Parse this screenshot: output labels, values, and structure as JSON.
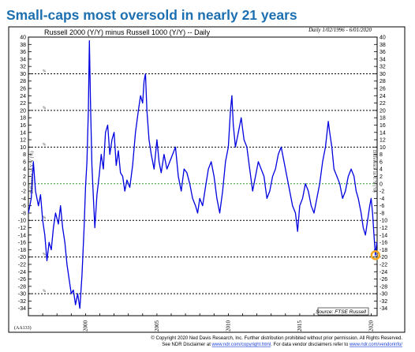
{
  "headline": "Small-caps most oversold in nearly 21 years",
  "chart_data": {
    "type": "line",
    "title": "Russell 2000 (Y/Y) minus Russell 1000 (Y/Y) -- Daily",
    "date_range": "Daily 1/02/1996 - 6/01/2020",
    "chart_code": "(AA133)",
    "source": "Source: FTSE Russell",
    "y_axis_label": "Difference in Y/Y (%)",
    "xlabel": "",
    "ylim": [
      -36,
      40
    ],
    "y_ticks": [
      40,
      38,
      36,
      34,
      32,
      30,
      28,
      26,
      24,
      22,
      20,
      18,
      16,
      14,
      12,
      10,
      8,
      6,
      4,
      2,
      0,
      -2,
      -4,
      -6,
      -8,
      -10,
      -12,
      -14,
      -16,
      -18,
      -20,
      -22,
      -24,
      -26,
      -28,
      -30,
      -32,
      -34
    ],
    "xlim": [
      1996.0,
      2020.42
    ],
    "x_tick_labels": [
      "2000",
      "2005",
      "2010",
      "2015",
      "2020"
    ],
    "x_ticks": [
      2000,
      2005,
      2010,
      2015,
      2020
    ],
    "reference_lines": [
      {
        "y": 30,
        "style": "dashed",
        "color": "#000000",
        "label": "%"
      },
      {
        "y": 20,
        "style": "dashed",
        "color": "#000000",
        "label": "%"
      },
      {
        "y": 10,
        "style": "dashed",
        "color": "#000000",
        "label": "%"
      },
      {
        "y": 0,
        "style": "dashed",
        "color": "#2e9b2e",
        "label": ""
      },
      {
        "y": -10,
        "style": "dashed",
        "color": "#000000",
        "label": "%"
      },
      {
        "y": -20,
        "style": "dashed",
        "color": "#000000",
        "label": "%"
      },
      {
        "y": -30,
        "style": "dashed",
        "color": "#000000",
        "label": "%"
      }
    ],
    "highlight": {
      "x": 2020.3,
      "y": -19.5,
      "color": "#f5a623"
    },
    "series": [
      {
        "color": "#0000e0",
        "points": [
          [
            1996.0,
            -8
          ],
          [
            1996.2,
            -4
          ],
          [
            1996.35,
            6
          ],
          [
            1996.5,
            -2
          ],
          [
            1996.7,
            -6
          ],
          [
            1996.85,
            -3
          ],
          [
            1997.0,
            -10
          ],
          [
            1997.15,
            -14
          ],
          [
            1997.3,
            -21
          ],
          [
            1997.45,
            -16
          ],
          [
            1997.6,
            -18
          ],
          [
            1997.75,
            -12
          ],
          [
            1997.9,
            -8
          ],
          [
            1998.1,
            -11
          ],
          [
            1998.25,
            -6
          ],
          [
            1998.4,
            -12
          ],
          [
            1998.55,
            -16
          ],
          [
            1998.7,
            -22
          ],
          [
            1998.85,
            -26
          ],
          [
            1999.0,
            -30
          ],
          [
            1999.15,
            -29
          ],
          [
            1999.3,
            -33
          ],
          [
            1999.45,
            -30
          ],
          [
            1999.6,
            -34
          ],
          [
            1999.75,
            -25
          ],
          [
            1999.9,
            -12
          ],
          [
            2000.0,
            -1
          ],
          [
            2000.1,
            6
          ],
          [
            2000.2,
            20
          ],
          [
            2000.27,
            39
          ],
          [
            2000.35,
            22
          ],
          [
            2000.45,
            5
          ],
          [
            2000.55,
            -4
          ],
          [
            2000.65,
            -12
          ],
          [
            2000.8,
            -3
          ],
          [
            2000.95,
            2
          ],
          [
            2001.1,
            8
          ],
          [
            2001.25,
            4
          ],
          [
            2001.4,
            14
          ],
          [
            2001.55,
            16
          ],
          [
            2001.7,
            8
          ],
          [
            2001.85,
            12
          ],
          [
            2002.0,
            14
          ],
          [
            2002.15,
            5
          ],
          [
            2002.3,
            9
          ],
          [
            2002.45,
            3
          ],
          [
            2002.6,
            2
          ],
          [
            2002.75,
            -2
          ],
          [
            2002.9,
            1
          ],
          [
            2003.1,
            -1
          ],
          [
            2003.3,
            5
          ],
          [
            2003.5,
            14
          ],
          [
            2003.7,
            20
          ],
          [
            2003.85,
            24
          ],
          [
            2004.0,
            22
          ],
          [
            2004.1,
            28
          ],
          [
            2004.2,
            30
          ],
          [
            2004.3,
            20
          ],
          [
            2004.45,
            12
          ],
          [
            2004.6,
            8
          ],
          [
            2004.8,
            4
          ],
          [
            2005.0,
            12
          ],
          [
            2005.15,
            6
          ],
          [
            2005.3,
            3
          ],
          [
            2005.5,
            8
          ],
          [
            2005.7,
            4
          ],
          [
            2005.9,
            6
          ],
          [
            2006.1,
            8
          ],
          [
            2006.3,
            10
          ],
          [
            2006.5,
            2
          ],
          [
            2006.7,
            -2
          ],
          [
            2006.9,
            4
          ],
          [
            2007.1,
            3
          ],
          [
            2007.3,
            0
          ],
          [
            2007.5,
            -4
          ],
          [
            2007.7,
            -6
          ],
          [
            2007.85,
            -8
          ],
          [
            2008.0,
            -4
          ],
          [
            2008.2,
            -6
          ],
          [
            2008.4,
            -1
          ],
          [
            2008.6,
            4
          ],
          [
            2008.8,
            6
          ],
          [
            2009.0,
            2
          ],
          [
            2009.2,
            -4
          ],
          [
            2009.4,
            -8
          ],
          [
            2009.6,
            -2
          ],
          [
            2009.8,
            6
          ],
          [
            2010.0,
            10
          ],
          [
            2010.15,
            20
          ],
          [
            2010.25,
            24
          ],
          [
            2010.35,
            16
          ],
          [
            2010.5,
            10
          ],
          [
            2010.7,
            14
          ],
          [
            2010.9,
            18
          ],
          [
            2011.1,
            12
          ],
          [
            2011.3,
            10
          ],
          [
            2011.5,
            4
          ],
          [
            2011.7,
            -2
          ],
          [
            2011.9,
            2
          ],
          [
            2012.1,
            6
          ],
          [
            2012.3,
            4
          ],
          [
            2012.5,
            2
          ],
          [
            2012.7,
            -4
          ],
          [
            2012.9,
            -2
          ],
          [
            2013.1,
            2
          ],
          [
            2013.3,
            4
          ],
          [
            2013.5,
            8
          ],
          [
            2013.7,
            10
          ],
          [
            2013.9,
            6
          ],
          [
            2014.1,
            2
          ],
          [
            2014.3,
            -2
          ],
          [
            2014.5,
            -6
          ],
          [
            2014.7,
            -8
          ],
          [
            2014.85,
            -13
          ],
          [
            2015.0,
            -6
          ],
          [
            2015.2,
            -4
          ],
          [
            2015.4,
            0
          ],
          [
            2015.6,
            -2
          ],
          [
            2015.8,
            -6
          ],
          [
            2016.0,
            -8
          ],
          [
            2016.2,
            -4
          ],
          [
            2016.4,
            0
          ],
          [
            2016.6,
            6
          ],
          [
            2016.8,
            10
          ],
          [
            2017.0,
            17
          ],
          [
            2017.1,
            14
          ],
          [
            2017.25,
            10
          ],
          [
            2017.4,
            4
          ],
          [
            2017.6,
            2
          ],
          [
            2017.8,
            0
          ],
          [
            2018.0,
            -4
          ],
          [
            2018.2,
            -2
          ],
          [
            2018.4,
            2
          ],
          [
            2018.6,
            4
          ],
          [
            2018.8,
            2
          ],
          [
            2018.95,
            -2
          ],
          [
            2019.1,
            -4
          ],
          [
            2019.3,
            -8
          ],
          [
            2019.45,
            -12
          ],
          [
            2019.6,
            -14
          ],
          [
            2019.75,
            -10
          ],
          [
            2019.9,
            -6
          ],
          [
            2020.0,
            -4
          ],
          [
            2020.1,
            -8
          ],
          [
            2020.2,
            -14
          ],
          [
            2020.3,
            -19.5
          ],
          [
            2020.4,
            -16
          ]
        ]
      }
    ]
  },
  "copyright": {
    "line1": "© Copyright 2020 Ned Davis Research, Inc.  Further distribution prohibited without prior permission.  All Rights Reserved.",
    "line2_prefix": "See NDR Disclaimer at ",
    "line2_link1": "www.ndr.com/copyright.html",
    "line2_mid": ".  For data vendor disclaimers refer to ",
    "line2_link2": "www.ndr.com/vendorinfo/"
  }
}
